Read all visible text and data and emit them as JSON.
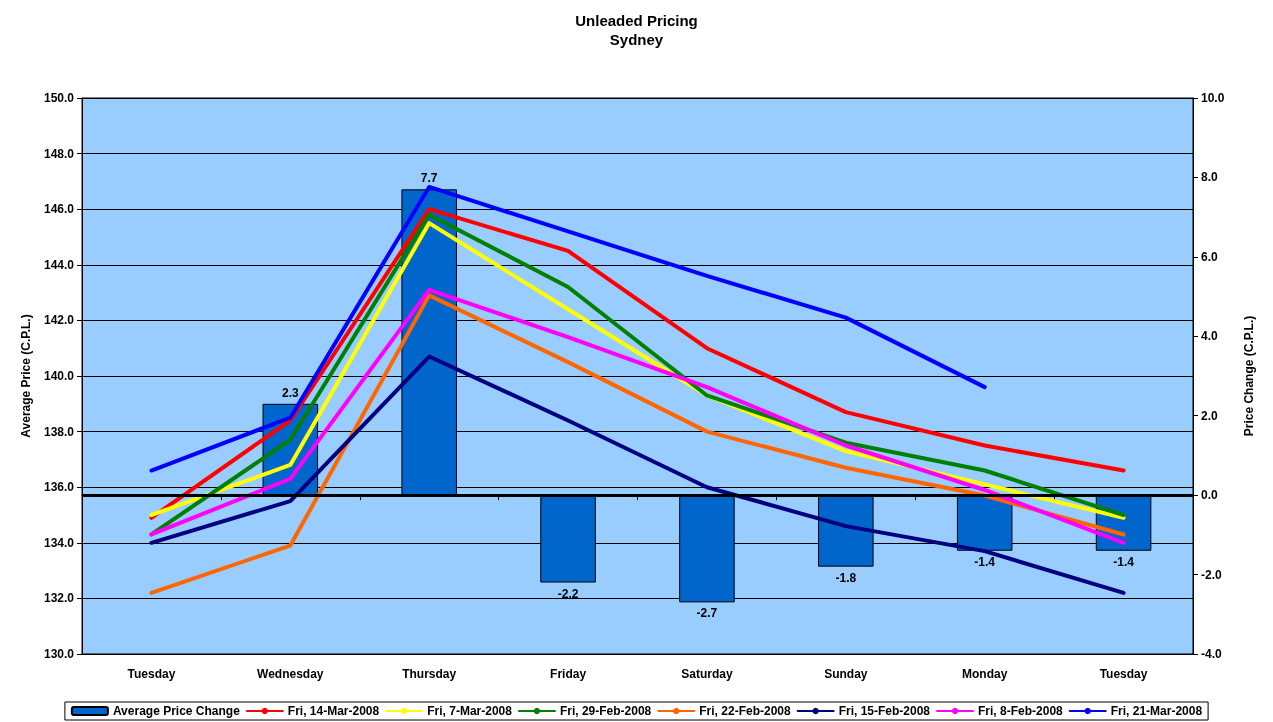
{
  "chart_data": {
    "type": "line",
    "title": "Unleaded Pricing",
    "subtitle": "Sydney",
    "ylabel": "Average Price (C.P.L.)",
    "y2label": "Price Change (C.P.L.)",
    "categories": [
      "Tuesday",
      "Wednesday",
      "Thursday",
      "Friday",
      "Saturday",
      "Sunday",
      "Monday",
      "Tuesday"
    ],
    "series": [
      {
        "name": "Average Price Change",
        "type": "bar",
        "axis": "y2",
        "color": "#0066cc",
        "values": [
          null,
          2.3,
          7.7,
          -2.2,
          -2.7,
          -1.8,
          -1.4,
          -1.4
        ],
        "value_labels": [
          null,
          "2.3",
          "7.7",
          "-2.2",
          "-2.7",
          "-1.8",
          "-1.4",
          "-1.4"
        ]
      },
      {
        "name": "Fri, 14-Mar-2008",
        "color": "#ff0000",
        "values": [
          134.9,
          138.4,
          146.0,
          144.5,
          141.0,
          138.7,
          137.5,
          136.6
        ]
      },
      {
        "name": "Fri, 7-Mar-2008",
        "color": "#ffff00",
        "values": [
          135.0,
          136.8,
          145.5,
          142.4,
          139.3,
          137.3,
          136.1,
          134.9
        ]
      },
      {
        "name": "Fri, 29-Feb-2008",
        "color": "#008000",
        "values": [
          134.3,
          137.7,
          145.8,
          143.2,
          139.3,
          137.6,
          136.6,
          135.0
        ]
      },
      {
        "name": "Fri, 22-Feb-2008",
        "color": "#ff6600",
        "values": [
          132.2,
          133.9,
          142.9,
          140.5,
          138.0,
          136.7,
          135.7,
          134.3
        ]
      },
      {
        "name": "Fri, 15-Feb-2008",
        "color": "#000080",
        "values": [
          134.0,
          135.5,
          140.7,
          138.4,
          136.0,
          134.6,
          133.7,
          132.2
        ]
      },
      {
        "name": "Fri, 8-Feb-2008",
        "color": "#ff00ff",
        "values": [
          134.3,
          136.3,
          143.1,
          141.4,
          139.6,
          137.5,
          135.9,
          134.0
        ]
      },
      {
        "name": "Fri, 21-Mar-2008",
        "color": "#0000ff",
        "values": [
          136.6,
          138.5,
          146.8,
          145.2,
          143.6,
          142.1,
          139.6,
          null
        ]
      }
    ],
    "ylim": [
      130,
      150
    ],
    "yticks": [
      {
        "value": 130,
        "label": "130.0"
      },
      {
        "value": 132,
        "label": "132.0"
      },
      {
        "value": 134,
        "label": "134.0"
      },
      {
        "value": 136,
        "label": "136.0"
      },
      {
        "value": 138,
        "label": "138.0"
      },
      {
        "value": 140,
        "label": "140.0"
      },
      {
        "value": 142,
        "label": "142.0"
      },
      {
        "value": 144,
        "label": "144.0"
      },
      {
        "value": 146,
        "label": "146.0"
      },
      {
        "value": 148,
        "label": "148.0"
      },
      {
        "value": 150,
        "label": "150.0"
      }
    ],
    "y2lim": [
      -4,
      10
    ],
    "y2ticks": [
      {
        "value": -4,
        "label": "-4.0"
      },
      {
        "value": -2,
        "label": "-2.0"
      },
      {
        "value": 0,
        "label": "0.0"
      },
      {
        "value": 2,
        "label": "2.0"
      },
      {
        "value": 4,
        "label": "4.0"
      },
      {
        "value": 6,
        "label": "6.0"
      },
      {
        "value": 8,
        "label": "8.0"
      },
      {
        "value": 10,
        "label": "10.0"
      }
    ],
    "ref_lines": [
      {
        "axis": "y2",
        "value": 0,
        "color": "#000000"
      }
    ],
    "grid": "y",
    "legend": "bottom",
    "marker": "none",
    "line_style": "solid"
  }
}
